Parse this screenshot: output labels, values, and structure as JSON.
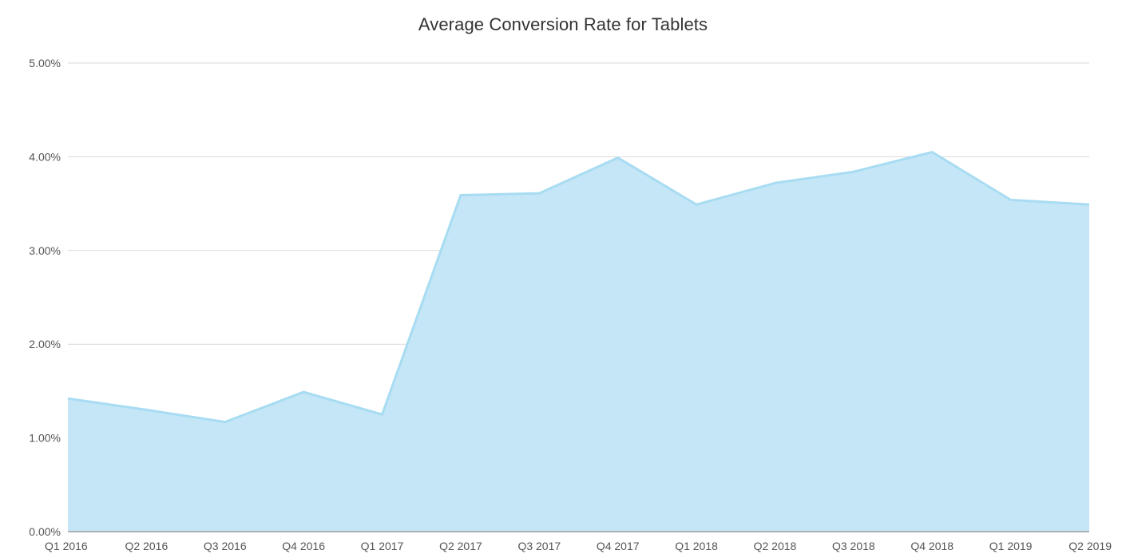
{
  "chart_data": {
    "type": "area",
    "title": "Average Conversion Rate for Tablets",
    "xlabel": "",
    "ylabel": "",
    "categories": [
      "Q1 2016",
      "Q2 2016",
      "Q3 2016",
      "Q4 2016",
      "Q1 2017",
      "Q2 2017",
      "Q3 2017",
      "Q4 2017",
      "Q1 2018",
      "Q2 2018",
      "Q3 2018",
      "Q4 2018",
      "Q1 2019",
      "Q2 2019"
    ],
    "series": [
      {
        "values": [
          1.42,
          1.3,
          1.17,
          1.49,
          1.25,
          3.59,
          3.61,
          3.99,
          3.49,
          3.72,
          3.84,
          4.05,
          3.54,
          3.49
        ]
      }
    ],
    "y_unit": "%",
    "ylim": [
      0,
      5
    ],
    "y_ticks": [
      "0.00%",
      "1.00%",
      "2.00%",
      "3.00%",
      "4.00%",
      "5.00%"
    ],
    "grid": true,
    "legend": "none",
    "colors": {
      "area_fill": "#c5e6f6",
      "area_line": "#a8dcf2"
    }
  }
}
